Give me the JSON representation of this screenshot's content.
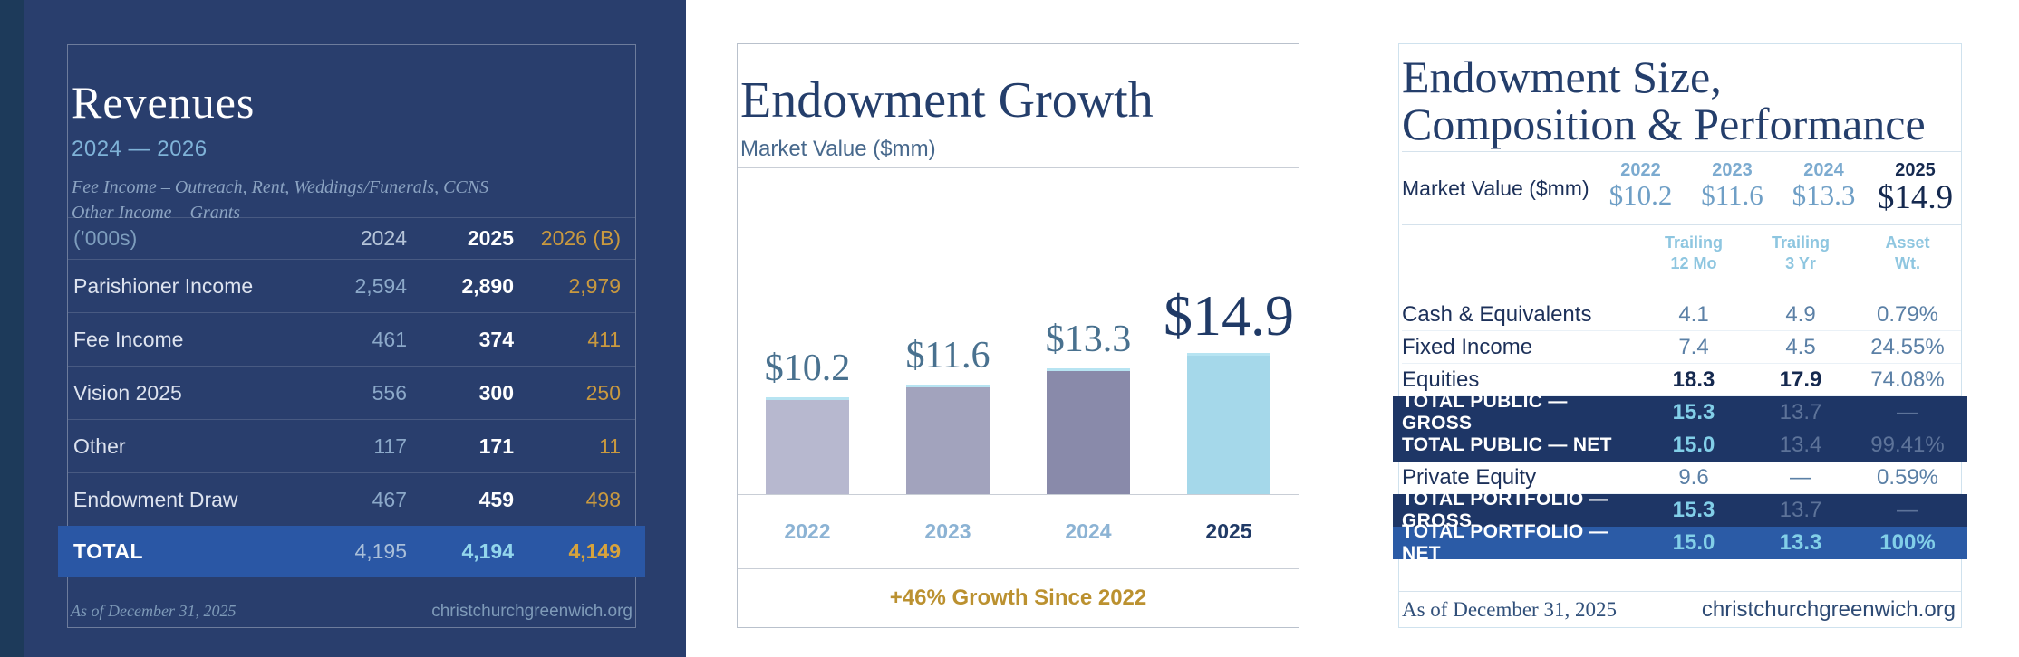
{
  "colors": {
    "navy_panel": "#293e6d",
    "navy_strip": "#1d3a5a",
    "total_row_blue": "#2a57a5",
    "gold": "#c9993f",
    "title_navy": "#243e6b",
    "band_navy": "#1e3666",
    "band_bright_blue": "#2b5ba6",
    "cyan_value": "#82cfe8",
    "steel_blue": "#8ca9c9",
    "light_blue_axis": "#8cb3d4"
  },
  "revenues_panel": {
    "title": "Revenues",
    "subtitle": "2024 — 2026",
    "notes": [
      "Fee Income – Outreach, Rent, Weddings/Funerals, CCNS",
      "Other Income – Grants"
    ],
    "table": {
      "unit_label": "(’000s)",
      "columns": [
        "2024",
        "2025",
        "2026 (B)"
      ],
      "rows": [
        {
          "label": "Parishioner Income",
          "values": [
            "2,594",
            "2,890",
            "2,979"
          ],
          "is_total": false
        },
        {
          "label": "Fee Income",
          "values": [
            "461",
            "374",
            "411"
          ],
          "is_total": false
        },
        {
          "label": "Vision 2025",
          "values": [
            "556",
            "300",
            "250"
          ],
          "is_total": false
        },
        {
          "label": "Other",
          "values": [
            "117",
            "171",
            "11"
          ],
          "is_total": false
        },
        {
          "label": "Endowment Draw",
          "values": [
            "467",
            "459",
            "498"
          ],
          "is_total": false
        },
        {
          "label": "TOTAL",
          "values": [
            "4,195",
            "4,194",
            "4,149"
          ],
          "is_total": true
        }
      ]
    },
    "footer": {
      "as_of": "As of December 31, 2025",
      "website": "christchurchgreenwich.org"
    }
  },
  "chart_data": {
    "type": "bar",
    "title": "Endowment Growth",
    "subtitle": "Market Value ($mm)",
    "categories": [
      "2022",
      "2023",
      "2024",
      "2025"
    ],
    "values": [
      10.2,
      11.6,
      13.3,
      14.9
    ],
    "value_labels": [
      "$10.2",
      "$11.6",
      "$13.3",
      "$14.9"
    ],
    "bar_colors": [
      "#b7b8cf",
      "#a2a3bd",
      "#898aaa",
      "#a5d8ea"
    ],
    "highlight_index": 3,
    "ylim": [
      0,
      16
    ],
    "grid": false,
    "annotation": "+46% Growth Since 2022"
  },
  "performance_panel": {
    "title_lines": [
      "Endowment Size,",
      "Composition & Performance"
    ],
    "market_value": {
      "label": "Market Value ($mm)",
      "columns": [
        {
          "year": "2022",
          "value": "$10.2",
          "highlight": false
        },
        {
          "year": "2023",
          "value": "$11.6",
          "highlight": false
        },
        {
          "year": "2024",
          "value": "$13.3",
          "highlight": false
        },
        {
          "year": "2025",
          "value": "$14.9",
          "highlight": true
        }
      ]
    },
    "perf_table": {
      "columns": [
        {
          "line1": "Trailing",
          "line2": "12 Mo"
        },
        {
          "line1": "Trailing",
          "line2": "3 Yr"
        },
        {
          "line1": "Asset",
          "line2": "Wt."
        }
      ],
      "rows": [
        {
          "label": "Cash & Equivalents",
          "style": "plain",
          "cells": [
            {
              "text": "4.1",
              "style": "slate"
            },
            {
              "text": "4.9",
              "style": "slate"
            },
            {
              "text": "0.79%",
              "style": "slate"
            }
          ]
        },
        {
          "label": "Fixed Income",
          "style": "plain",
          "cells": [
            {
              "text": "7.4",
              "style": "slate"
            },
            {
              "text": "4.5",
              "style": "slate"
            },
            {
              "text": "24.55%",
              "style": "slate"
            }
          ]
        },
        {
          "label": "Equities",
          "style": "plain",
          "cells": [
            {
              "text": "18.3",
              "style": "bold-navy"
            },
            {
              "text": "17.9",
              "style": "bold-navy"
            },
            {
              "text": "74.08%",
              "style": "slate"
            }
          ]
        },
        {
          "label": "TOTAL PUBLIC — GROSS",
          "style": "band-navy",
          "cells": [
            {
              "text": "15.3",
              "style": "cyan"
            },
            {
              "text": "13.7",
              "style": "muted"
            },
            {
              "text": "—",
              "style": "muted"
            }
          ]
        },
        {
          "label": "TOTAL PUBLIC — NET",
          "style": "band-navy",
          "cells": [
            {
              "text": "15.0",
              "style": "cyan"
            },
            {
              "text": "13.4",
              "style": "muted"
            },
            {
              "text": "99.41%",
              "style": "muted"
            }
          ]
        },
        {
          "label": "Private Equity",
          "style": "plain",
          "cells": [
            {
              "text": "9.6",
              "style": "slate"
            },
            {
              "text": "—",
              "style": "slate"
            },
            {
              "text": "0.59%",
              "style": "slate"
            }
          ]
        },
        {
          "label": "TOTAL PORTFOLIO — GROSS",
          "style": "band-navy",
          "cells": [
            {
              "text": "15.3",
              "style": "cyan"
            },
            {
              "text": "13.7",
              "style": "muted"
            },
            {
              "text": "—",
              "style": "muted"
            }
          ]
        },
        {
          "label": "TOTAL PORTFOLIO — NET",
          "style": "band-bright",
          "cells": [
            {
              "text": "15.0",
              "style": "cyan"
            },
            {
              "text": "13.3",
              "style": "cyan"
            },
            {
              "text": "100%",
              "style": "cyan"
            }
          ]
        }
      ]
    },
    "footer": {
      "as_of": "As of December 31, 2025",
      "website": "christchurchgreenwich.org"
    }
  }
}
